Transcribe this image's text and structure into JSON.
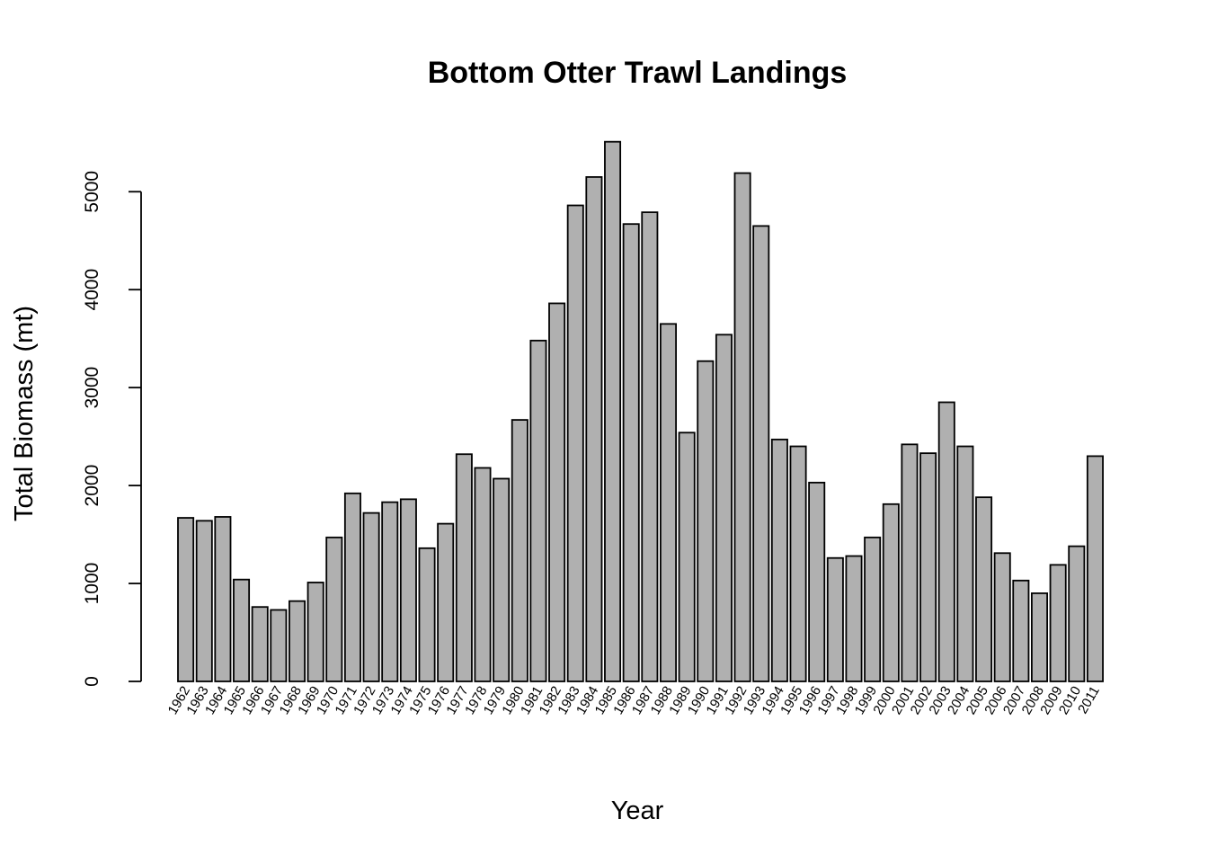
{
  "chart_data": {
    "type": "bar",
    "title": "Bottom Otter Trawl Landings",
    "xlabel": "Year",
    "ylabel": "Total Biomass (mt)",
    "ylim": [
      0,
      5600
    ],
    "yticks": [
      0,
      1000,
      2000,
      3000,
      4000,
      5000
    ],
    "ytick_labels": [
      "0",
      "1000",
      "2000",
      "3000",
      "4000",
      "5000"
    ],
    "bar_color": "#b0b0b0",
    "grid": false,
    "categories": [
      "1962",
      "1963",
      "1964",
      "1965",
      "1966",
      "1967",
      "1968",
      "1969",
      "1970",
      "1971",
      "1972",
      "1973",
      "1974",
      "1975",
      "1976",
      "1977",
      "1978",
      "1979",
      "1980",
      "1981",
      "1982",
      "1983",
      "1984",
      "1985",
      "1986",
      "1987",
      "1988",
      "1989",
      "1990",
      "1991",
      "1992",
      "1993",
      "1994",
      "1995",
      "1996",
      "1997",
      "1998",
      "1999",
      "2000",
      "2001",
      "2002",
      "2003",
      "2004",
      "2005",
      "2006",
      "2007",
      "2008",
      "2009",
      "2010",
      "2011"
    ],
    "values": [
      1670,
      1640,
      1680,
      1040,
      760,
      730,
      820,
      1010,
      1470,
      1920,
      1720,
      1830,
      1860,
      1360,
      1610,
      2320,
      2180,
      2070,
      2670,
      3480,
      3860,
      4860,
      5150,
      5510,
      4670,
      4790,
      3650,
      2540,
      3270,
      3540,
      5190,
      4650,
      2470,
      2400,
      2030,
      1260,
      1280,
      1470,
      1810,
      2420,
      2330,
      2850,
      2400,
      1880,
      1310,
      1030,
      900,
      1190,
      1380,
      2300
    ]
  }
}
